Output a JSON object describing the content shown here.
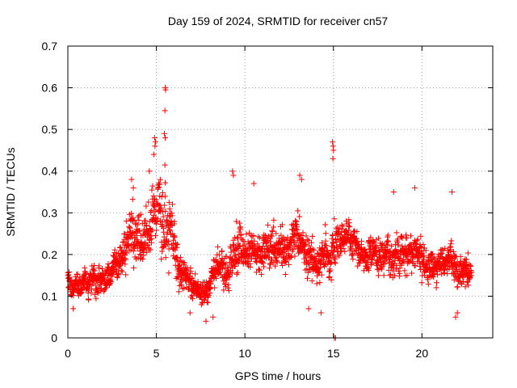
{
  "chart_data": {
    "type": "scatter",
    "title": "Day 159 of 2024, SRMTID for receiver cn57",
    "xlabel": "GPS time / hours",
    "ylabel": "SRMTID / TECUs",
    "xlim": [
      0,
      24
    ],
    "ylim": [
      0,
      0.7
    ],
    "xticks": [
      0,
      5,
      10,
      15,
      20
    ],
    "yticks": [
      0,
      0.1,
      0.2,
      0.3,
      0.4,
      0.5,
      0.6,
      0.7
    ],
    "grid": true,
    "marker": "+",
    "series": [
      {
        "name": "SRMTID",
        "color": "#ff0000",
        "profile": [
          [
            0.0,
            0.14,
            0.04
          ],
          [
            0.5,
            0.13,
            0.04
          ],
          [
            1.0,
            0.14,
            0.04
          ],
          [
            1.5,
            0.14,
            0.05
          ],
          [
            2.0,
            0.13,
            0.04
          ],
          [
            2.5,
            0.17,
            0.05
          ],
          [
            3.0,
            0.19,
            0.06
          ],
          [
            3.5,
            0.24,
            0.08
          ],
          [
            4.0,
            0.23,
            0.08
          ],
          [
            4.5,
            0.27,
            0.09
          ],
          [
            5.0,
            0.3,
            0.1
          ],
          [
            5.5,
            0.28,
            0.12
          ],
          [
            6.0,
            0.22,
            0.08
          ],
          [
            6.5,
            0.16,
            0.06
          ],
          [
            7.0,
            0.12,
            0.04
          ],
          [
            7.5,
            0.11,
            0.04
          ],
          [
            8.0,
            0.12,
            0.04
          ],
          [
            8.5,
            0.17,
            0.06
          ],
          [
            9.0,
            0.16,
            0.05
          ],
          [
            9.5,
            0.2,
            0.08
          ],
          [
            10.0,
            0.2,
            0.06
          ],
          [
            10.5,
            0.22,
            0.06
          ],
          [
            11.0,
            0.21,
            0.06
          ],
          [
            11.5,
            0.22,
            0.06
          ],
          [
            12.0,
            0.22,
            0.07
          ],
          [
            12.5,
            0.23,
            0.06
          ],
          [
            13.0,
            0.24,
            0.07
          ],
          [
            13.5,
            0.2,
            0.06
          ],
          [
            14.0,
            0.17,
            0.06
          ],
          [
            14.5,
            0.21,
            0.06
          ],
          [
            15.0,
            0.22,
            0.08
          ],
          [
            15.5,
            0.24,
            0.06
          ],
          [
            16.0,
            0.23,
            0.05
          ],
          [
            16.5,
            0.19,
            0.05
          ],
          [
            17.0,
            0.19,
            0.05
          ],
          [
            17.5,
            0.21,
            0.06
          ],
          [
            18.0,
            0.21,
            0.06
          ],
          [
            18.5,
            0.2,
            0.06
          ],
          [
            19.0,
            0.2,
            0.06
          ],
          [
            19.5,
            0.22,
            0.06
          ],
          [
            20.0,
            0.21,
            0.06
          ],
          [
            20.5,
            0.17,
            0.06
          ],
          [
            21.0,
            0.16,
            0.05
          ],
          [
            21.5,
            0.18,
            0.05
          ],
          [
            22.0,
            0.16,
            0.05
          ],
          [
            22.7,
            0.16,
            0.05
          ]
        ],
        "sample_step_hours": 0.01,
        "xmax": 22.8,
        "extra_points": [
          [
            5.5,
            0.6
          ],
          [
            5.52,
            0.595
          ],
          [
            5.48,
            0.545
          ],
          [
            5.45,
            0.49
          ],
          [
            5.5,
            0.48
          ],
          [
            4.9,
            0.48
          ],
          [
            4.95,
            0.47
          ],
          [
            4.92,
            0.46
          ],
          [
            4.85,
            0.44
          ],
          [
            14.95,
            0.47
          ],
          [
            14.98,
            0.46
          ],
          [
            15.0,
            0.45
          ],
          [
            14.97,
            0.43
          ],
          [
            15.05,
            0.0
          ],
          [
            15.12,
            0.0
          ],
          [
            9.3,
            0.4
          ],
          [
            9.35,
            0.39
          ],
          [
            13.1,
            0.39
          ],
          [
            13.2,
            0.38
          ],
          [
            3.6,
            0.38
          ],
          [
            3.7,
            0.36
          ],
          [
            4.6,
            0.4
          ],
          [
            21.7,
            0.35
          ],
          [
            19.6,
            0.36
          ],
          [
            18.4,
            0.35
          ],
          [
            10.5,
            0.37
          ],
          [
            7.8,
            0.04
          ],
          [
            21.9,
            0.05
          ],
          [
            22.0,
            0.06
          ],
          [
            13.6,
            0.07
          ],
          [
            14.3,
            0.06
          ],
          [
            0.3,
            0.07
          ],
          [
            6.9,
            0.06
          ],
          [
            8.2,
            0.05
          ]
        ]
      }
    ]
  }
}
